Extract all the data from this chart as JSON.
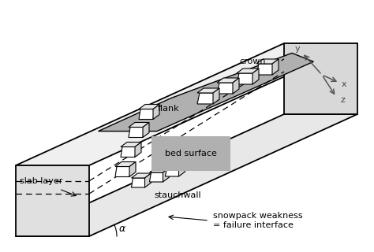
{
  "background_color": "#ffffff",
  "line_color": "#000000",
  "box_face_color": "#f2f2f2",
  "box_side_color": "#e0e0e0",
  "box_bottom_color": "#d8d8d8",
  "slope_color": "#f5f5f5",
  "bed_surface_color": "#aaaaaa",
  "block_color": "#ffffff",
  "figsize": [
    4.74,
    3.2
  ],
  "dpi": 100,
  "labels": {
    "crown": "crown",
    "flank": "flank",
    "bed_surface": "bed surface",
    "stauchwall": "stauchwall",
    "slab_layer": "slab layer",
    "snowpack": "snowpack weakness\n= failure interface",
    "alpha": "α",
    "y_axis": "y",
    "x_axis": "x",
    "z_axis": "z"
  }
}
